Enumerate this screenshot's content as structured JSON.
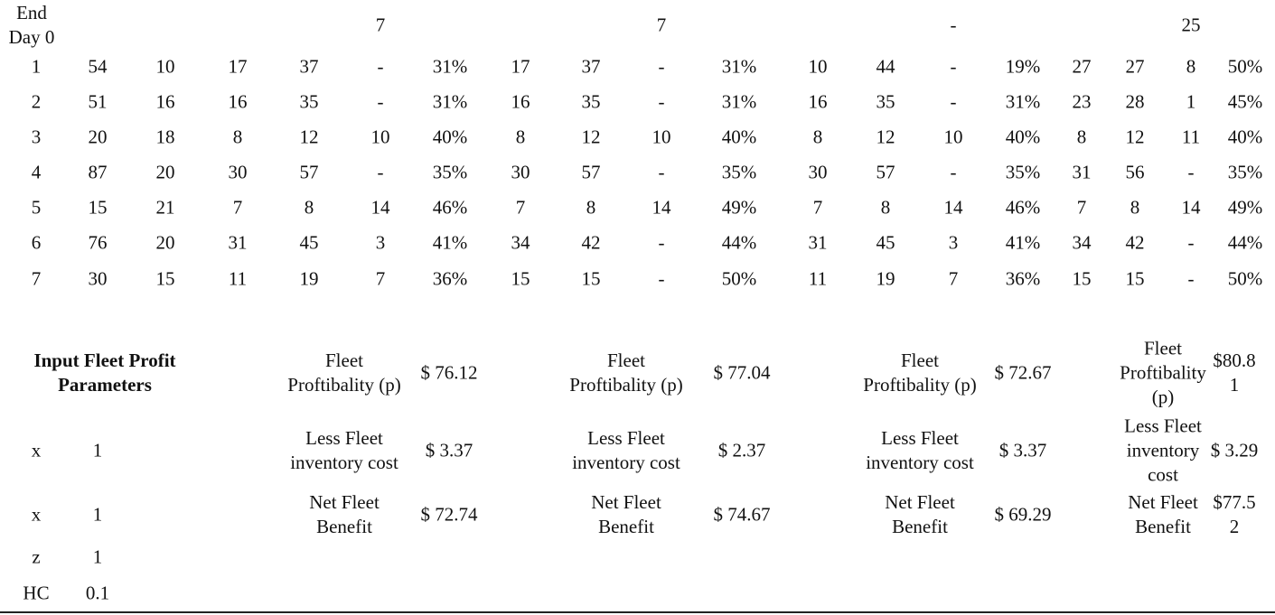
{
  "header_row": {
    "label": [
      "End",
      "Day 0"
    ],
    "values": [
      "7",
      "7",
      "-",
      "25"
    ]
  },
  "rows": [
    [
      "1",
      "54",
      "10",
      "17",
      "37",
      "-",
      "31%",
      "17",
      "37",
      "-",
      "31%",
      "10",
      "44",
      "-",
      "19%",
      "27",
      "27",
      "8",
      "50%"
    ],
    [
      "2",
      "51",
      "16",
      "16",
      "35",
      "-",
      "31%",
      "16",
      "35",
      "-",
      "31%",
      "16",
      "35",
      "-",
      "31%",
      "23",
      "28",
      "1",
      "45%"
    ],
    [
      "3",
      "20",
      "18",
      "8",
      "12",
      "10",
      "40%",
      "8",
      "12",
      "10",
      "40%",
      "8",
      "12",
      "10",
      "40%",
      "8",
      "12",
      "11",
      "40%"
    ],
    [
      "4",
      "87",
      "20",
      "30",
      "57",
      "-",
      "35%",
      "30",
      "57",
      "-",
      "35%",
      "30",
      "57",
      "-",
      "35%",
      "31",
      "56",
      "-",
      "35%"
    ],
    [
      "5",
      "15",
      "21",
      "7",
      "8",
      "14",
      "46%",
      "7",
      "8",
      "14",
      "49%",
      "7",
      "8",
      "14",
      "46%",
      "7",
      "8",
      "14",
      "49%"
    ],
    [
      "6",
      "76",
      "20",
      "31",
      "45",
      "3",
      "41%",
      "34",
      "42",
      "-",
      "44%",
      "31",
      "45",
      "3",
      "41%",
      "34",
      "42",
      "-",
      "44%"
    ],
    [
      "7",
      "30",
      "15",
      "11",
      "19",
      "7",
      "36%",
      "15",
      "15",
      "-",
      "50%",
      "11",
      "19",
      "7",
      "36%",
      "15",
      "15",
      "-",
      "50%"
    ]
  ],
  "parameters": {
    "heading": [
      "Input Fleet Profit",
      "Parameters"
    ],
    "items": [
      {
        "name": "x",
        "value": "1"
      },
      {
        "name": "x",
        "value": "1"
      },
      {
        "name": "z",
        "value": "1"
      },
      {
        "name": "HC",
        "value": "0.1"
      }
    ]
  },
  "results": [
    {
      "profit_label": [
        "Fleet",
        "Proftibality (p)"
      ],
      "profit_value": [
        "$ 76.12"
      ],
      "cost_label": [
        "Less Fleet",
        "inventory cost"
      ],
      "cost_value": [
        "$ 3.37"
      ],
      "net_label": [
        "Net Fleet",
        "Benefit"
      ],
      "net_value": [
        "$ 72.74"
      ]
    },
    {
      "profit_label": [
        "Fleet",
        "Proftibality (p)"
      ],
      "profit_value": [
        "$ 77.04"
      ],
      "cost_label": [
        "Less Fleet",
        "inventory cost"
      ],
      "cost_value": [
        "$ 2.37"
      ],
      "net_label": [
        "Net Fleet",
        "Benefit"
      ],
      "net_value": [
        "$ 74.67"
      ]
    },
    {
      "profit_label": [
        "Fleet",
        "Proftibality (p)"
      ],
      "profit_value": [
        "$ 72.67"
      ],
      "cost_label": [
        "Less Fleet",
        "inventory cost"
      ],
      "cost_value": [
        "$ 3.37"
      ],
      "net_label": [
        "Net Fleet",
        "Benefit"
      ],
      "net_value": [
        "$ 69.29"
      ]
    },
    {
      "profit_label": [
        "Fleet",
        "Proftibality",
        "(p)"
      ],
      "profit_value": [
        "$80.8",
        "1"
      ],
      "cost_label": [
        "Less Fleet",
        "inventory",
        "cost"
      ],
      "cost_value": [
        "$ 3.29"
      ],
      "net_label": [
        "Net Fleet",
        "Benefit"
      ],
      "net_value": [
        "$77.5",
        "2"
      ]
    }
  ]
}
